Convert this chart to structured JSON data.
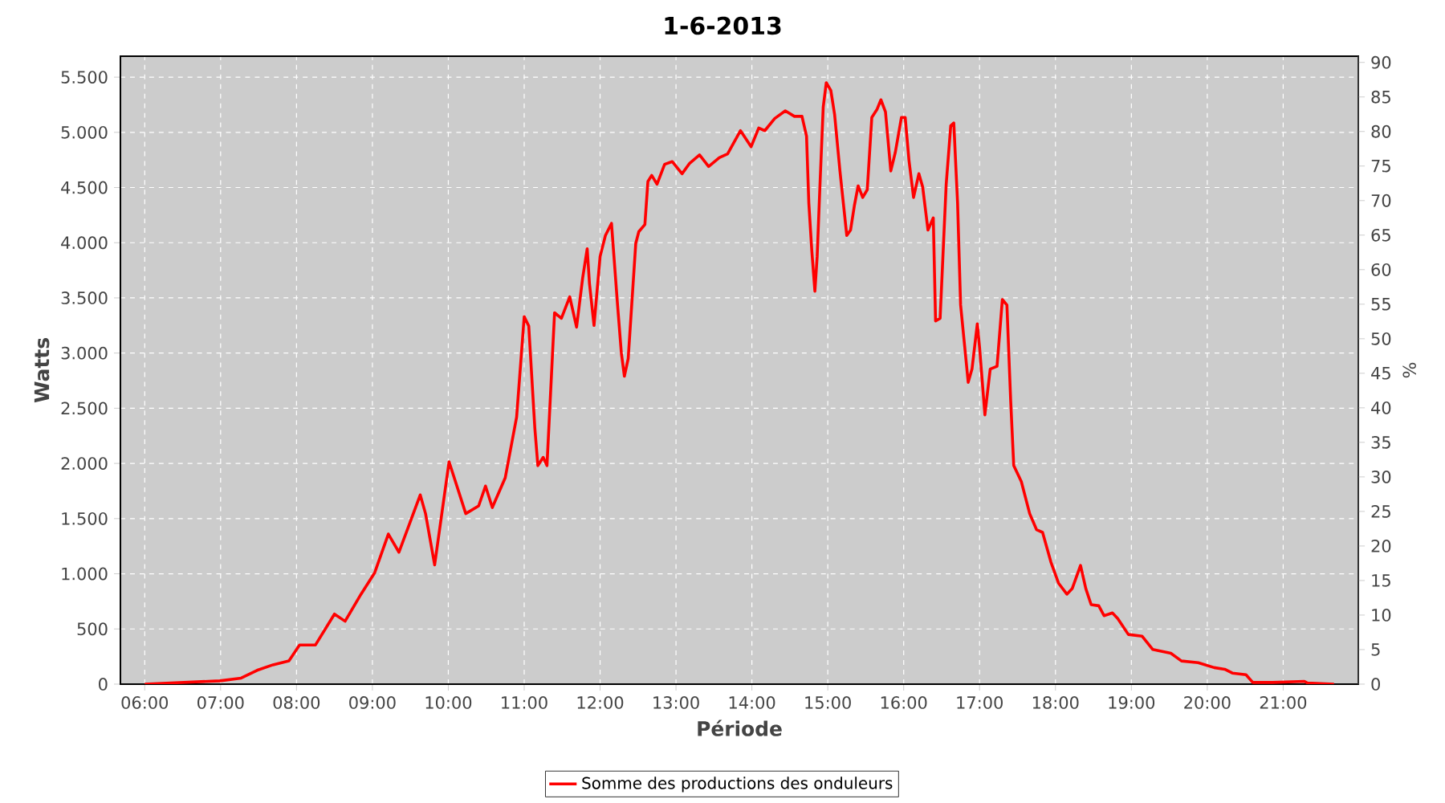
{
  "chart_data": {
    "type": "line",
    "title": "1-6-2013",
    "xlabel": "Période",
    "ylabel": "Watts",
    "y2label": "%",
    "xlim": [
      5.68,
      21.99
    ],
    "xticks": [
      {
        "value": 6,
        "label": "06:00"
      },
      {
        "value": 7,
        "label": "07:00"
      },
      {
        "value": 8,
        "label": "08:00"
      },
      {
        "value": 9,
        "label": "09:00"
      },
      {
        "value": 10,
        "label": "10:00"
      },
      {
        "value": 11,
        "label": "11:00"
      },
      {
        "value": 12,
        "label": "12:00"
      },
      {
        "value": 13,
        "label": "13:00"
      },
      {
        "value": 14,
        "label": "14:00"
      },
      {
        "value": 15,
        "label": "15:00"
      },
      {
        "value": 16,
        "label": "16:00"
      },
      {
        "value": 17,
        "label": "17:00"
      },
      {
        "value": 18,
        "label": "18:00"
      },
      {
        "value": 19,
        "label": "19:00"
      },
      {
        "value": 20,
        "label": "20:00"
      },
      {
        "value": 21,
        "label": "21:00"
      }
    ],
    "ylim": [
      0,
      5690
    ],
    "yticks": [
      0,
      500,
      {
        "value": 1000,
        "label": "1.000"
      },
      {
        "value": 1500,
        "label": "1.500"
      },
      {
        "value": 2000,
        "label": "2.000"
      },
      {
        "value": 2500,
        "label": "2.500"
      },
      {
        "value": 3000,
        "label": "3.000"
      },
      {
        "value": 3500,
        "label": "3.500"
      },
      {
        "value": 4000,
        "label": "4.000"
      },
      {
        "value": 4500,
        "label": "4.500"
      },
      {
        "value": 5000,
        "label": "5.000"
      },
      {
        "value": 5500,
        "label": "5.500"
      }
    ],
    "y2lim": [
      0,
      90.9
    ],
    "y2ticks": [
      0,
      5,
      10,
      15,
      20,
      25,
      30,
      35,
      40,
      45,
      50,
      55,
      60,
      65,
      70,
      75,
      80,
      85,
      90
    ],
    "grid": true,
    "legend": "bottom",
    "line_style": "solid",
    "series": [
      {
        "name": "Somme des productions des onduleurs",
        "color": "#ff0000",
        "x": [
          6.0,
          6.99,
          7.27,
          7.48,
          7.69,
          7.9,
          8.04,
          8.25,
          8.5,
          8.64,
          8.85,
          9.03,
          9.21,
          9.35,
          9.63,
          9.7,
          9.82,
          10.01,
          10.23,
          10.4,
          10.49,
          10.58,
          10.75,
          10.9,
          11.0,
          11.06,
          11.14,
          11.18,
          11.25,
          11.3,
          11.4,
          11.49,
          11.6,
          11.69,
          11.77,
          11.83,
          11.86,
          11.92,
          12.0,
          12.07,
          12.15,
          12.23,
          12.28,
          12.32,
          12.37,
          12.47,
          12.51,
          12.59,
          12.63,
          12.68,
          12.75,
          12.85,
          12.95,
          13.08,
          13.18,
          13.31,
          13.43,
          13.57,
          13.68,
          13.85,
          13.99,
          14.09,
          14.17,
          14.3,
          14.44,
          14.56,
          14.66,
          14.72,
          14.75,
          14.79,
          14.83,
          14.86,
          14.9,
          14.94,
          14.98,
          15.04,
          15.09,
          15.16,
          15.25,
          15.3,
          15.35,
          15.4,
          15.46,
          15.52,
          15.58,
          15.65,
          15.7,
          15.76,
          15.83,
          15.89,
          15.97,
          16.02,
          16.07,
          16.13,
          16.2,
          16.25,
          16.32,
          16.39,
          16.42,
          16.48,
          16.56,
          16.62,
          16.66,
          16.71,
          16.75,
          16.85,
          16.9,
          16.97,
          17.0,
          17.07,
          17.14,
          17.23,
          17.3,
          17.36,
          17.41,
          17.45,
          17.55,
          17.66,
          17.75,
          17.83,
          17.94,
          18.04,
          18.15,
          18.22,
          18.33,
          18.4,
          18.47,
          18.57,
          18.64,
          18.75,
          18.82,
          18.96,
          19.14,
          19.28,
          19.52,
          19.66,
          19.88,
          20.09,
          20.23,
          20.33,
          20.51,
          20.6,
          20.86,
          21.28,
          21.32,
          21.67
        ],
        "values": [
          0,
          30,
          55,
          125,
          175,
          210,
          355,
          355,
          635,
          570,
          815,
          1010,
          1360,
          1195,
          1715,
          1545,
          1080,
          2015,
          1545,
          1615,
          1795,
          1600,
          1870,
          2420,
          3330,
          3245,
          2320,
          1980,
          2055,
          1980,
          3365,
          3315,
          3510,
          3235,
          3680,
          3945,
          3630,
          3250,
          3875,
          4065,
          4175,
          3435,
          3000,
          2790,
          2950,
          3995,
          4100,
          4165,
          4555,
          4610,
          4530,
          4710,
          4735,
          4625,
          4720,
          4795,
          4690,
          4770,
          4805,
          5015,
          4870,
          5040,
          5015,
          5125,
          5195,
          5145,
          5145,
          4965,
          4360,
          3920,
          3560,
          3875,
          4575,
          5230,
          5450,
          5380,
          5160,
          4650,
          4065,
          4115,
          4335,
          4515,
          4410,
          4480,
          5135,
          5210,
          5295,
          5185,
          4650,
          4820,
          5135,
          5135,
          4745,
          4410,
          4625,
          4505,
          4115,
          4225,
          3290,
          3315,
          4530,
          5060,
          5085,
          4360,
          3435,
          2735,
          2855,
          3265,
          3050,
          2440,
          2855,
          2880,
          3485,
          3435,
          2565,
          1980,
          1835,
          1545,
          1400,
          1375,
          1105,
          915,
          815,
          865,
          1075,
          865,
          720,
          710,
          620,
          645,
          595,
          450,
          435,
          315,
          280,
          210,
          195,
          150,
          135,
          100,
          85,
          15,
          15,
          25,
          10,
          0
        ]
      }
    ]
  }
}
